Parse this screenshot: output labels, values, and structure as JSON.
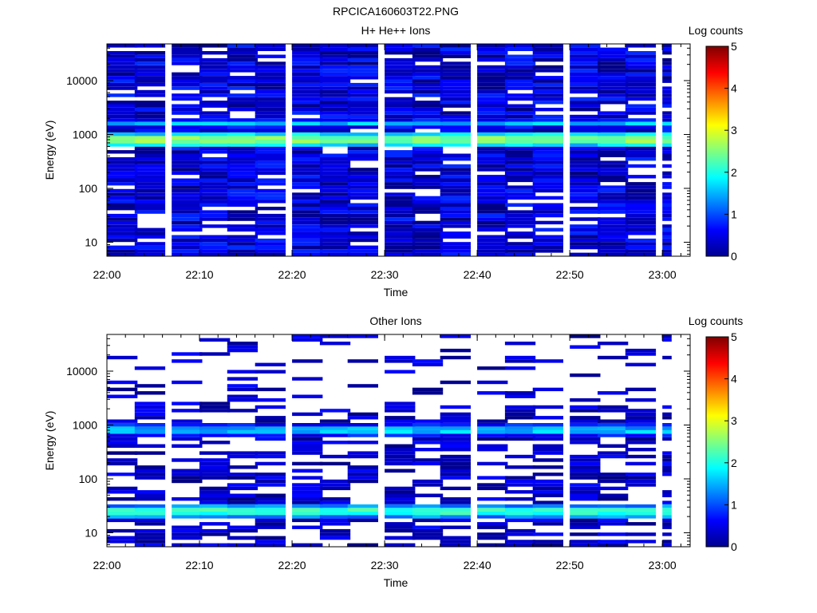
{
  "figure": {
    "title": "RPCICA160603T22.PNG"
  },
  "chart_data": [
    {
      "type": "heatmap",
      "title": "H+ He++ Ions",
      "xlabel": "Time",
      "ylabel": "Energy (eV)",
      "x_ticks": [
        "22:00",
        "22:10",
        "22:20",
        "22:30",
        "22:40",
        "22:50",
        "23:00"
      ],
      "y_ticks": [
        "10",
        "100",
        "1000",
        "10000"
      ],
      "y_scale": "log",
      "x_range": [
        "22:00",
        "23:03"
      ],
      "y_range": [
        5.5,
        48000
      ],
      "time_bins": [
        "22:00",
        "22:03",
        "22:07",
        "22:10",
        "22:13",
        "22:16",
        "22:20",
        "22:23",
        "22:26",
        "22:30",
        "22:33",
        "22:36",
        "22:40",
        "22:43",
        "22:46",
        "22:50",
        "22:53",
        "22:56",
        "23:00"
      ],
      "energy_bins": [
        5.5,
        6.4,
        7.4,
        8.7,
        10.1,
        11.7,
        13.6,
        15.8,
        18.4,
        21.4,
        24.9,
        29.0,
        33.7,
        39.2,
        45.6,
        53.1,
        61.7,
        71.8,
        83.5,
        97.1,
        113,
        131,
        153,
        178,
        207,
        241,
        280,
        325,
        378,
        440,
        512,
        595,
        692,
        805,
        937,
        1090,
        1267,
        1474,
        1714,
        1994,
        2319,
        2698,
        3138,
        3651,
        4246,
        4940,
        5746,
        6683,
        7774,
        9043,
        10519,
        12236,
        14232,
        16555,
        19257,
        22399,
        26054,
        30306,
        35252,
        41004,
        48000
      ],
      "features": [
        {
          "label": "band",
          "energy": 800,
          "level": 2.7
        },
        {
          "label": "band",
          "energy": 1600,
          "level": 1.6
        }
      ],
      "colorbar": {
        "label": "Log counts",
        "range": [
          0,
          5
        ],
        "ticks": [
          "0",
          "1",
          "2",
          "3",
          "4",
          "5"
        ]
      }
    },
    {
      "type": "heatmap",
      "title": "Other Ions",
      "xlabel": "Time",
      "ylabel": "Energy (eV)",
      "x_ticks": [
        "22:00",
        "22:10",
        "22:20",
        "22:30",
        "22:40",
        "22:50",
        "23:00"
      ],
      "y_ticks": [
        "10",
        "100",
        "1000",
        "10000"
      ],
      "y_scale": "log",
      "x_range": [
        "22:00",
        "23:03"
      ],
      "y_range": [
        5.5,
        48000
      ],
      "time_bins": [
        "22:00",
        "22:03",
        "22:07",
        "22:10",
        "22:13",
        "22:16",
        "22:20",
        "22:23",
        "22:26",
        "22:30",
        "22:33",
        "22:36",
        "22:40",
        "22:43",
        "22:46",
        "22:50",
        "22:53",
        "22:56",
        "23:00"
      ],
      "energy_bins": [
        5.5,
        6.4,
        7.4,
        8.7,
        10.1,
        11.7,
        13.6,
        15.8,
        18.4,
        21.4,
        24.9,
        29.0,
        33.7,
        39.2,
        45.6,
        53.1,
        61.7,
        71.8,
        83.5,
        97.1,
        113,
        131,
        153,
        178,
        207,
        241,
        280,
        325,
        378,
        440,
        512,
        595,
        692,
        805,
        937,
        1090,
        1267,
        1474,
        1714,
        1994,
        2319,
        2698,
        3138,
        3651,
        4246,
        4940,
        5746,
        6683,
        7774,
        9043,
        10519,
        12236,
        14232,
        16555,
        19257,
        22399,
        26054,
        30306,
        35252,
        41004,
        48000
      ],
      "features": [
        {
          "label": "band",
          "energy": 25,
          "level": 2.3
        },
        {
          "label": "band",
          "energy": 780,
          "level": 1.7
        }
      ],
      "colorbar": {
        "label": "Log counts",
        "range": [
          0,
          5
        ],
        "ticks": [
          "0",
          "1",
          "2",
          "3",
          "4",
          "5"
        ]
      }
    }
  ]
}
